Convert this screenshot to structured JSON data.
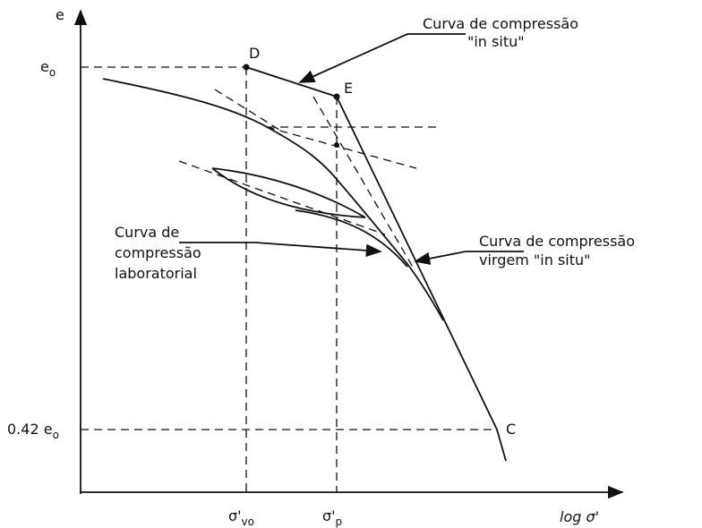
{
  "axes": {
    "y_label": "e",
    "x_label": "log σ'"
  },
  "y_ticks": [
    {
      "base": "e",
      "sub": "o"
    },
    {
      "prefix": "0.42 ",
      "base": "e",
      "sub": "o"
    }
  ],
  "x_ticks": [
    {
      "base": "σ'",
      "sub": "vo"
    },
    {
      "base": "σ'",
      "sub": "p"
    }
  ],
  "points": [
    "D",
    "E",
    "C"
  ],
  "annotations": {
    "in_situ": [
      "Curva de compressão",
      "\"in situ\""
    ],
    "virgin": [
      "Curva de compressão",
      "virgem \"in situ\""
    ],
    "laboratory": [
      "Curva de",
      "compressão",
      "laboratorial"
    ]
  }
}
